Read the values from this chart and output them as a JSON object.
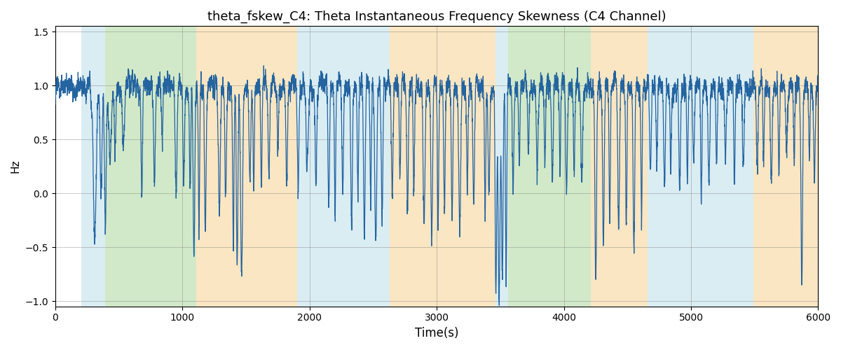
{
  "title": "theta_fskew_C4: Theta Instantaneous Frequency Skewness (C4 Channel)",
  "xlabel": "Time(s)",
  "ylabel": "Hz",
  "xlim": [
    0,
    6000
  ],
  "ylim": [
    -1.05,
    1.55
  ],
  "line_color": "#2464a0",
  "line_width": 0.9,
  "bg_color": "#ffffff",
  "bands": [
    {
      "xmin": 205,
      "xmax": 390,
      "color": "#add8e6",
      "alpha": 0.45
    },
    {
      "xmin": 390,
      "xmax": 1110,
      "color": "#90c878",
      "alpha": 0.4
    },
    {
      "xmin": 1110,
      "xmax": 1900,
      "color": "#f5c87a",
      "alpha": 0.45
    },
    {
      "xmin": 1900,
      "xmax": 2630,
      "color": "#add8e6",
      "alpha": 0.45
    },
    {
      "xmin": 2630,
      "xmax": 3460,
      "color": "#f5c87a",
      "alpha": 0.45
    },
    {
      "xmin": 3460,
      "xmax": 3560,
      "color": "#add8e6",
      "alpha": 0.45
    },
    {
      "xmin": 3560,
      "xmax": 4210,
      "color": "#90c878",
      "alpha": 0.4
    },
    {
      "xmin": 4210,
      "xmax": 4660,
      "color": "#f5c87a",
      "alpha": 0.45
    },
    {
      "xmin": 4660,
      "xmax": 5490,
      "color": "#add8e6",
      "alpha": 0.45
    },
    {
      "xmin": 5490,
      "xmax": 6000,
      "color": "#f5c87a",
      "alpha": 0.45
    }
  ],
  "yticks": [
    -1.0,
    -0.5,
    0.0,
    0.5,
    1.0,
    1.5
  ],
  "xticks": [
    0,
    1000,
    2000,
    3000,
    4000,
    5000,
    6000
  ],
  "title_fontsize": 13,
  "figsize": [
    12.0,
    5.0
  ],
  "dpi": 100
}
